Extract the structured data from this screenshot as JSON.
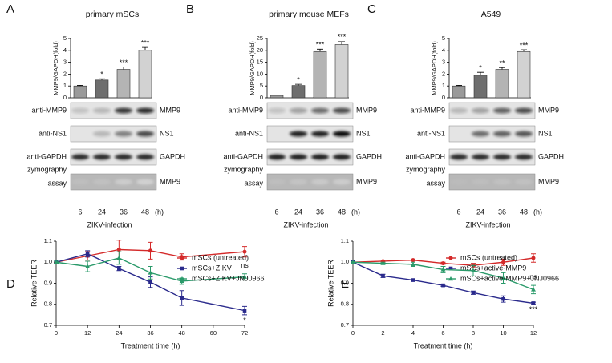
{
  "chart_data": [
    {
      "type": "bar",
      "panel": "A",
      "title": "primary mSCs",
      "ylabel": "MMP9/GAPDH(fold)",
      "categories": [
        "6",
        "24",
        "36",
        "48"
      ],
      "values": [
        1,
        1.5,
        2.4,
        4.0
      ],
      "errors": [
        0.05,
        0.1,
        0.2,
        0.25
      ],
      "annotations": [
        null,
        "*",
        "***",
        "***"
      ],
      "colors": [
        "#9a9a9a",
        "#6e6e6e",
        "#b4b4b4",
        "#d2d2d2"
      ],
      "ylim": [
        0,
        5
      ],
      "yticks": [
        0,
        1,
        2,
        3,
        4,
        5
      ],
      "blot_rows": [
        {
          "antibody": "anti-MMP9",
          "band": "MMP9"
        },
        {
          "antibody": "anti-NS1",
          "band": "NS1"
        },
        {
          "antibody": "anti-GAPDH",
          "band": "GAPDH"
        }
      ],
      "zymography": {
        "label_lines": [
          "zymography",
          "assay"
        ],
        "band": "MMP9"
      },
      "time_unit": "(h)",
      "xlabel": "ZIKV-infection"
    },
    {
      "type": "bar",
      "panel": "B",
      "title": "primary mouse MEFs",
      "ylabel": "MMP9/GAPDH(fold)",
      "categories": [
        "6",
        "24",
        "36",
        "48"
      ],
      "values": [
        1,
        5.2,
        19.5,
        22.5
      ],
      "errors": [
        0.2,
        0.5,
        1.0,
        1.2
      ],
      "annotations": [
        null,
        "*",
        "***",
        "***"
      ],
      "colors": [
        "#9a9a9a",
        "#6e6e6e",
        "#b4b4b4",
        "#d2d2d2"
      ],
      "ylim": [
        0,
        25
      ],
      "yticks": [
        0,
        5,
        10,
        15,
        20,
        25
      ],
      "blot_rows": [
        {
          "antibody": "anti-MMP9",
          "band": "MMP9"
        },
        {
          "antibody": "anti-NS1",
          "band": "NS1"
        },
        {
          "antibody": "anti-GAPDH",
          "band": "GAPDH"
        }
      ],
      "zymography": {
        "label_lines": [
          "zymography",
          "assay"
        ],
        "band": "MMP9"
      },
      "time_unit": "(h)",
      "xlabel": "ZIKV-infection"
    },
    {
      "type": "bar",
      "panel": "C",
      "title": "A549",
      "ylabel": "MMP9/GAPDH(fold)",
      "categories": [
        "6",
        "24",
        "36",
        "48"
      ],
      "values": [
        1,
        1.9,
        2.4,
        3.9
      ],
      "errors": [
        0.05,
        0.25,
        0.15,
        0.15
      ],
      "annotations": [
        null,
        "*",
        "**",
        "***"
      ],
      "colors": [
        "#9a9a9a",
        "#6e6e6e",
        "#b4b4b4",
        "#d2d2d2"
      ],
      "ylim": [
        0,
        5
      ],
      "yticks": [
        0,
        1,
        2,
        3,
        4,
        5
      ],
      "blot_rows": [
        {
          "antibody": "anti-MMP9",
          "band": "MMP9"
        },
        {
          "antibody": "anti-NS1",
          "band": "NS1"
        },
        {
          "antibody": "anti-GAPDH",
          "band": "GAPDH"
        }
      ],
      "zymography": {
        "label_lines": [
          "zymography",
          "assay"
        ],
        "band": "MMP9"
      },
      "time_unit": "(h)",
      "xlabel": "ZIKV-infection"
    },
    {
      "type": "line",
      "panel": "D",
      "xlabel": "Treatment time (h)",
      "ylabel": "Relative TEER",
      "x": [
        0,
        12,
        24,
        36,
        48,
        72
      ],
      "xlim": [
        0,
        72
      ],
      "xticks": [
        0,
        12,
        24,
        36,
        48,
        60,
        72
      ],
      "ylim": [
        0.7,
        1.1
      ],
      "yticks": [
        0.7,
        0.8,
        0.9,
        {
          "value": 1,
          "label": "1.0"
        },
        1.1
      ],
      "series": [
        {
          "name": "mSCs (untreated)",
          "color": "#d42a2a",
          "values": [
            1.0,
            1.03,
            1.06,
            1.055,
            1.025,
            1.05
          ],
          "errors": [
            0.005,
            0.02,
            0.045,
            0.04,
            0.015,
            0.025
          ]
        },
        {
          "name": "mSCs+ZIKV",
          "color": "#2a2a8c",
          "values": [
            1.0,
            1.04,
            0.97,
            0.905,
            0.83,
            0.77
          ],
          "errors": [
            0.005,
            0.015,
            0.01,
            0.025,
            0.035,
            0.02
          ],
          "end_annotation": "*"
        },
        {
          "name": "mSCs+ZIKV+JNJ0966",
          "color": "#2a9a6a",
          "values": [
            1.0,
            0.98,
            1.02,
            0.95,
            0.91,
            0.93
          ],
          "errors": [
            0.005,
            0.025,
            0.03,
            0.03,
            0.015,
            0.015
          ],
          "end_annotation": "ns"
        }
      ]
    },
    {
      "type": "line",
      "panel": "E",
      "xlabel": "Treatment time (h)",
      "ylabel": "Relative TEER",
      "x": [
        0,
        2,
        4,
        6,
        8,
        10,
        12
      ],
      "xlim": [
        0,
        12
      ],
      "xticks": [
        0,
        2,
        4,
        6,
        8,
        10,
        12
      ],
      "ylim": [
        0.7,
        1.1
      ],
      "yticks": [
        0.7,
        0.8,
        0.9,
        {
          "value": 1,
          "label": "1.0"
        },
        1.1
      ],
      "series": [
        {
          "name": "mSCs (untreated)",
          "color": "#d42a2a",
          "values": [
            1.0,
            1.005,
            1.01,
            0.995,
            0.985,
            1.0,
            1.02
          ],
          "errors": [
            0.003,
            0.005,
            0.005,
            0.005,
            0.01,
            0.015,
            0.02
          ]
        },
        {
          "name": "mSCs+active-MMP9",
          "color": "#2a2a8c",
          "values": [
            1.0,
            0.935,
            0.915,
            0.89,
            0.855,
            0.825,
            0.805
          ],
          "errors": [
            0.003,
            0.008,
            0.005,
            0.005,
            0.008,
            0.015,
            0.005
          ],
          "end_annotation": "***"
        },
        {
          "name": "mSCs+active-MMP9+JNJ0966",
          "color": "#2a9a6a",
          "values": [
            1.0,
            0.995,
            0.99,
            0.965,
            0.96,
            0.925,
            0.87
          ],
          "errors": [
            0.003,
            0.005,
            0.01,
            0.015,
            0.025,
            0.025,
            0.02
          ],
          "end_annotation": "ns"
        }
      ]
    }
  ]
}
